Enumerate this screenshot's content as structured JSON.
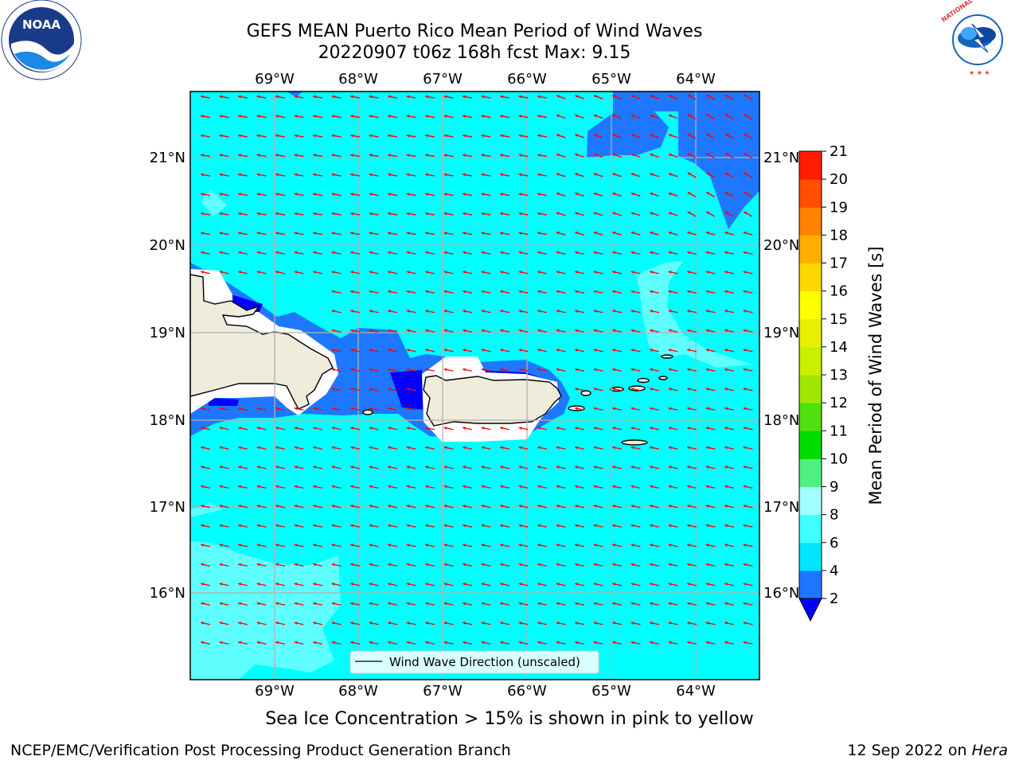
{
  "title_line1": "GEFS MEAN Puerto Rico Mean Period of Wind Waves",
  "title_line2": "20220907 t06z 168h fcst   Max: 9.15",
  "subtitle": "Sea Ice Concentration > 15% is shown in pink to yellow",
  "footer_left": "NCEP/EMC/Verification Post Processing Product Generation Branch",
  "footer_right_date": "12 Sep 2022 on ",
  "footer_right_host": "Hera",
  "legend_label": "Wind Wave Direction (unscaled)",
  "colorbar": {
    "label": "Mean Period of Wind Waves [s]",
    "ticks": [
      "2",
      "4",
      "6",
      "8",
      "9",
      "10",
      "11",
      "12",
      "13",
      "14",
      "15",
      "16",
      "17",
      "18",
      "19",
      "20",
      "21"
    ],
    "colors": [
      "#1e78ff",
      "#00e6ff",
      "#40ffff",
      "#a0ffff",
      "#50f080",
      "#00dc00",
      "#50e010",
      "#a0e600",
      "#c8f000",
      "#e6f000",
      "#ffff00",
      "#ffd700",
      "#ffaf00",
      "#ff8200",
      "#ff5000",
      "#ff1e00"
    ],
    "under_color": "#0000ff"
  },
  "map": {
    "lon_labels": [
      "69°W",
      "68°W",
      "67°W",
      "66°W",
      "65°W",
      "64°W"
    ],
    "lat_labels": [
      "21°N",
      "20°N",
      "19°N",
      "18°N",
      "17°N",
      "16°N"
    ],
    "colors": {
      "sea_main": "#00ffff",
      "sea_band_2_4": "#1e78ff",
      "sea_under_2": "#0000ff",
      "sea_6_8": "#60ffff",
      "land": "#f0ecdc",
      "coast_gap": "#ffffff",
      "arrow": "#ff0000",
      "grid": "#b0b0b0"
    }
  },
  "logos": {
    "noaa": "NOAA",
    "nws": "NATIONAL WEATHER SERVICE"
  }
}
